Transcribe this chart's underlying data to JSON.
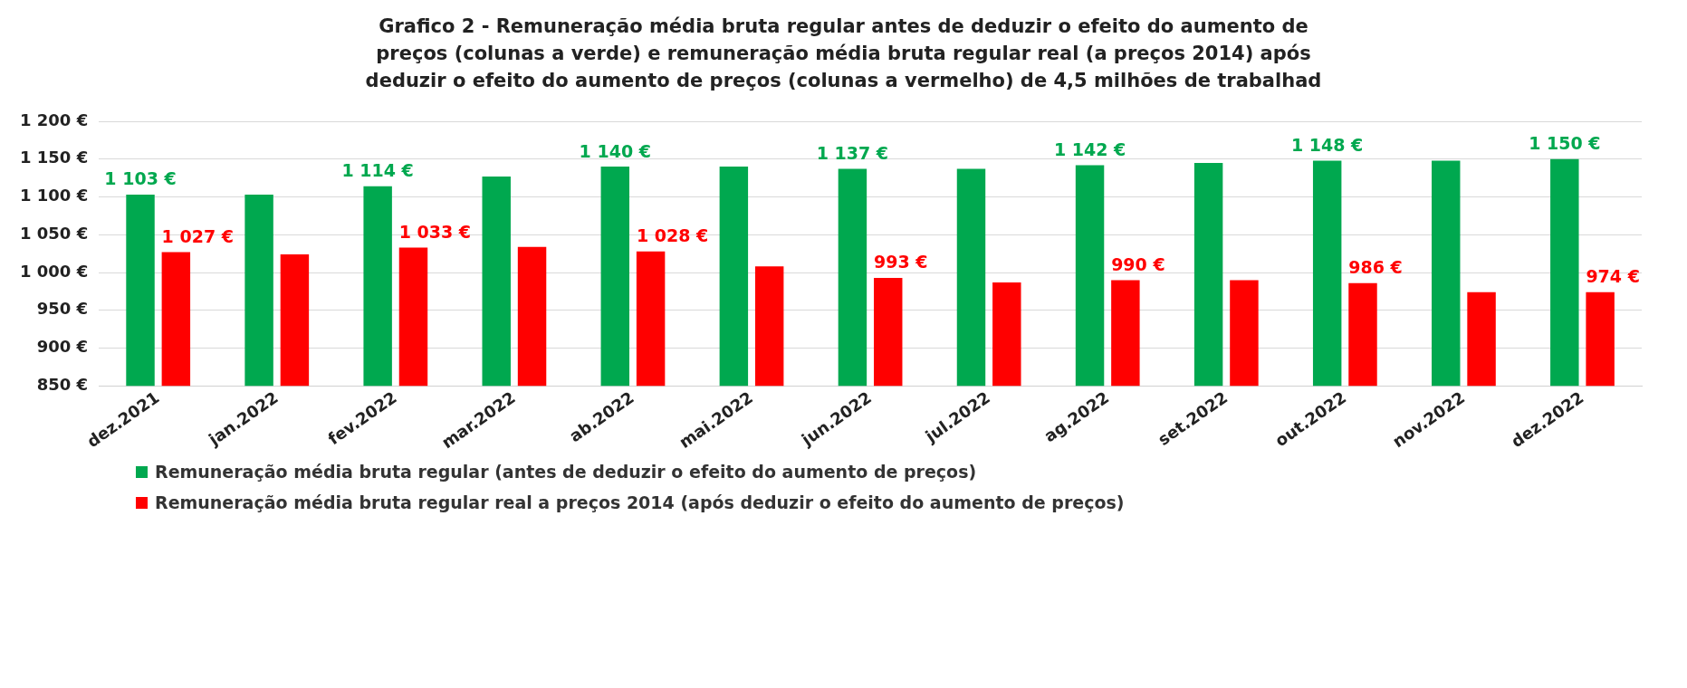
{
  "chart_data": {
    "type": "bar",
    "title": "Grafico 2 - Remuneração média bruta regular antes de deduzir o efeito do aumento de preços (colunas a verde) e remuneração média bruta regular real (a preços 2014) após deduzir o efeito do aumento de preços (colunas a vermelho) de 4,5 milhões de trabalhad",
    "categories": [
      "dez.2021",
      "jan.2022",
      "fev.2022",
      "mar.2022",
      "ab.2022",
      "mai.2022",
      "jun.2022",
      "jul.2022",
      "ag.2022",
      "set.2022",
      "out.2022",
      "nov.2022",
      "dez.2022"
    ],
    "series": [
      {
        "name": "Remuneração média bruta regular (antes de deduzir o efeito do aumento de preços)",
        "color": "#00a84f",
        "values": [
          1103,
          1103,
          1114,
          1127,
          1140,
          1140,
          1137,
          1137,
          1142,
          1145,
          1148,
          1148,
          1150
        ],
        "value_labels": [
          "1 103 €",
          null,
          "1 114 €",
          null,
          "1 140 €",
          null,
          "1 137 €",
          null,
          "1 142 €",
          null,
          "1 148 €",
          null,
          "1 150 €"
        ]
      },
      {
        "name": "Remuneração média bruta regular real a preços 2014 (após deduzir o efeito do aumento de preços)",
        "color": "#ff0000",
        "values": [
          1027,
          1024,
          1033,
          1034,
          1028,
          1008,
          993,
          987,
          990,
          990,
          986,
          974,
          974
        ],
        "value_labels": [
          "1 027 €",
          null,
          "1 033 €",
          null,
          "1 028 €",
          null,
          "993 €",
          null,
          "990 €",
          null,
          "986 €",
          null,
          "974 €"
        ]
      }
    ],
    "ylim": [
      850,
      1200
    ],
    "yticks": [
      {
        "value": 850,
        "label": "850 €"
      },
      {
        "value": 900,
        "label": "900 €"
      },
      {
        "value": 950,
        "label": "950 €"
      },
      {
        "value": 1000,
        "label": "1 000 €"
      },
      {
        "value": 1050,
        "label": "1 050 €"
      },
      {
        "value": 1100,
        "label": "1 100 €"
      },
      {
        "value": 1150,
        "label": "1 150 €"
      },
      {
        "value": 1200,
        "label": "1 200 €"
      }
    ],
    "grid": "y",
    "legend": "bottom"
  }
}
